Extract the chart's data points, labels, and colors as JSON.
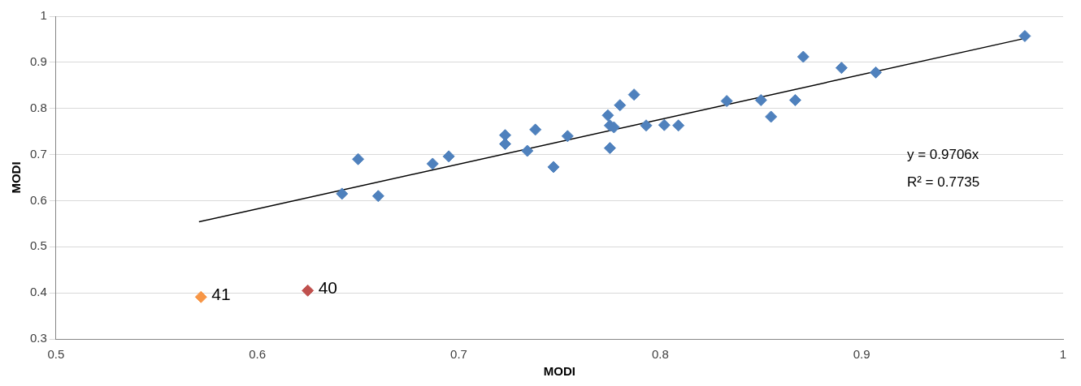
{
  "chart_data": {
    "type": "scatter",
    "xlabel": "MODI",
    "ylabel": "MODI",
    "xlim": [
      0.5,
      1
    ],
    "xticks": [
      0.5,
      0.6,
      0.7,
      0.8,
      0.9,
      1
    ],
    "ylim": [
      0.3,
      1
    ],
    "yticks": [
      0.3,
      0.4,
      0.5,
      0.6,
      0.7,
      0.8,
      0.9,
      1
    ],
    "grid": "y",
    "legend": false,
    "marker": "diamond",
    "series": [
      {
        "color": "#4f81bd",
        "x": [
          0.642,
          0.65,
          0.66,
          0.687,
          0.695,
          0.723,
          0.723,
          0.734,
          0.738,
          0.747,
          0.754,
          0.774,
          0.775,
          0.775,
          0.777,
          0.78,
          0.787,
          0.793,
          0.802,
          0.809,
          0.833,
          0.85,
          0.855,
          0.867,
          0.871,
          0.89,
          0.907,
          0.981
        ],
        "values": [
          0.615,
          0.69,
          0.61,
          0.68,
          0.696,
          0.742,
          0.723,
          0.708,
          0.754,
          0.673,
          0.74,
          0.785,
          0.763,
          0.714,
          0.759,
          0.807,
          0.83,
          0.763,
          0.764,
          0.763,
          0.816,
          0.818,
          0.782,
          0.818,
          0.912,
          0.888,
          0.878,
          0.957
        ]
      },
      {
        "color": "#f79646",
        "x": [
          0.572
        ],
        "values": [
          0.391
        ]
      },
      {
        "color": "#c0504d",
        "x": [
          0.625
        ],
        "values": [
          0.405
        ]
      },
      {
        "type": "line",
        "color": "#000000",
        "marker": "none",
        "x": [
          0.571,
          0.98
        ],
        "values": [
          0.554,
          0.951
        ]
      }
    ],
    "annotations": [
      {
        "text": "41",
        "x": 0.572,
        "y": 0.391
      },
      {
        "text": "40",
        "x": 0.625,
        "y": 0.405
      },
      "y = 0.9706x",
      "R² = 0.7735"
    ]
  }
}
